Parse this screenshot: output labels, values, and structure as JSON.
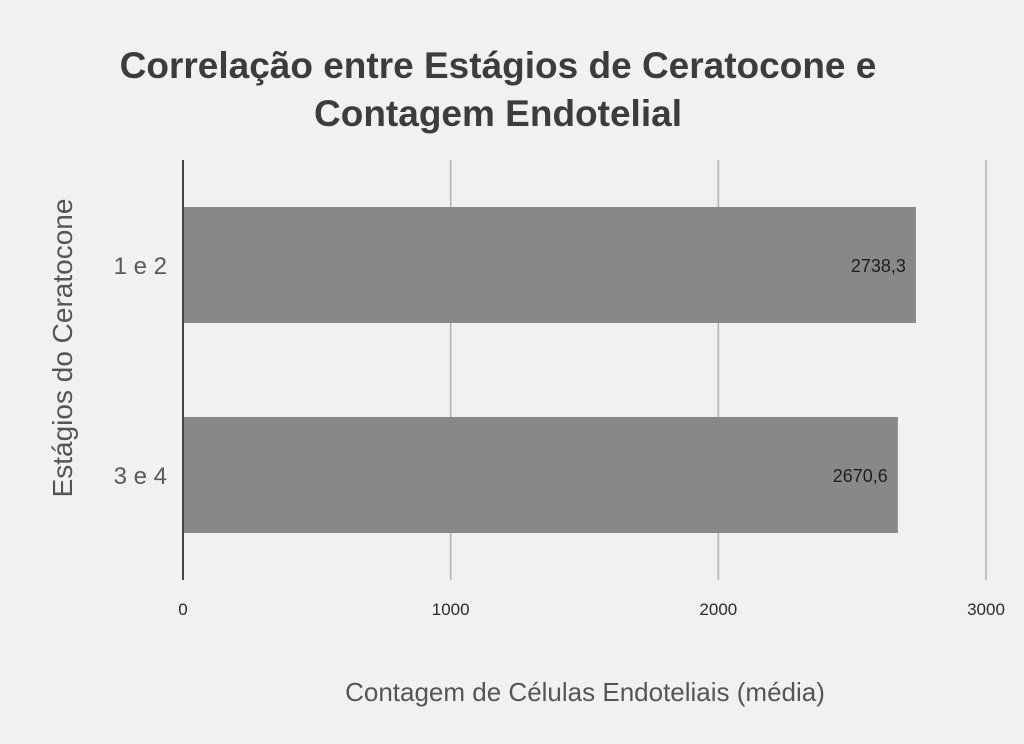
{
  "chart_data": {
    "type": "bar",
    "orientation": "horizontal",
    "title": "Correlação entre Estágios de Ceratocone e Contagem Endotelial",
    "title_lines": [
      "Correlação entre Estágios de Ceratocone e",
      "Contagem Endotelial"
    ],
    "xlabel": "Contagem de Células Endoteliais (média)",
    "ylabel": "Estágios do Ceratocone",
    "categories": [
      "1 e 2",
      "3 e 4"
    ],
    "values": [
      2738.3,
      2670.6
    ],
    "data_labels": [
      "2738,3",
      "2670,6"
    ],
    "xlim": [
      0,
      3000
    ],
    "xticks": [
      0,
      1000,
      2000,
      3000
    ],
    "xtick_labels": [
      "0",
      "1000",
      "2000",
      "3000"
    ],
    "grid": true,
    "legend": "none",
    "colors": {
      "bar": "#888888",
      "grid": "#b4b4b4",
      "axis": "#444444",
      "background": "#f1f1f1"
    }
  }
}
